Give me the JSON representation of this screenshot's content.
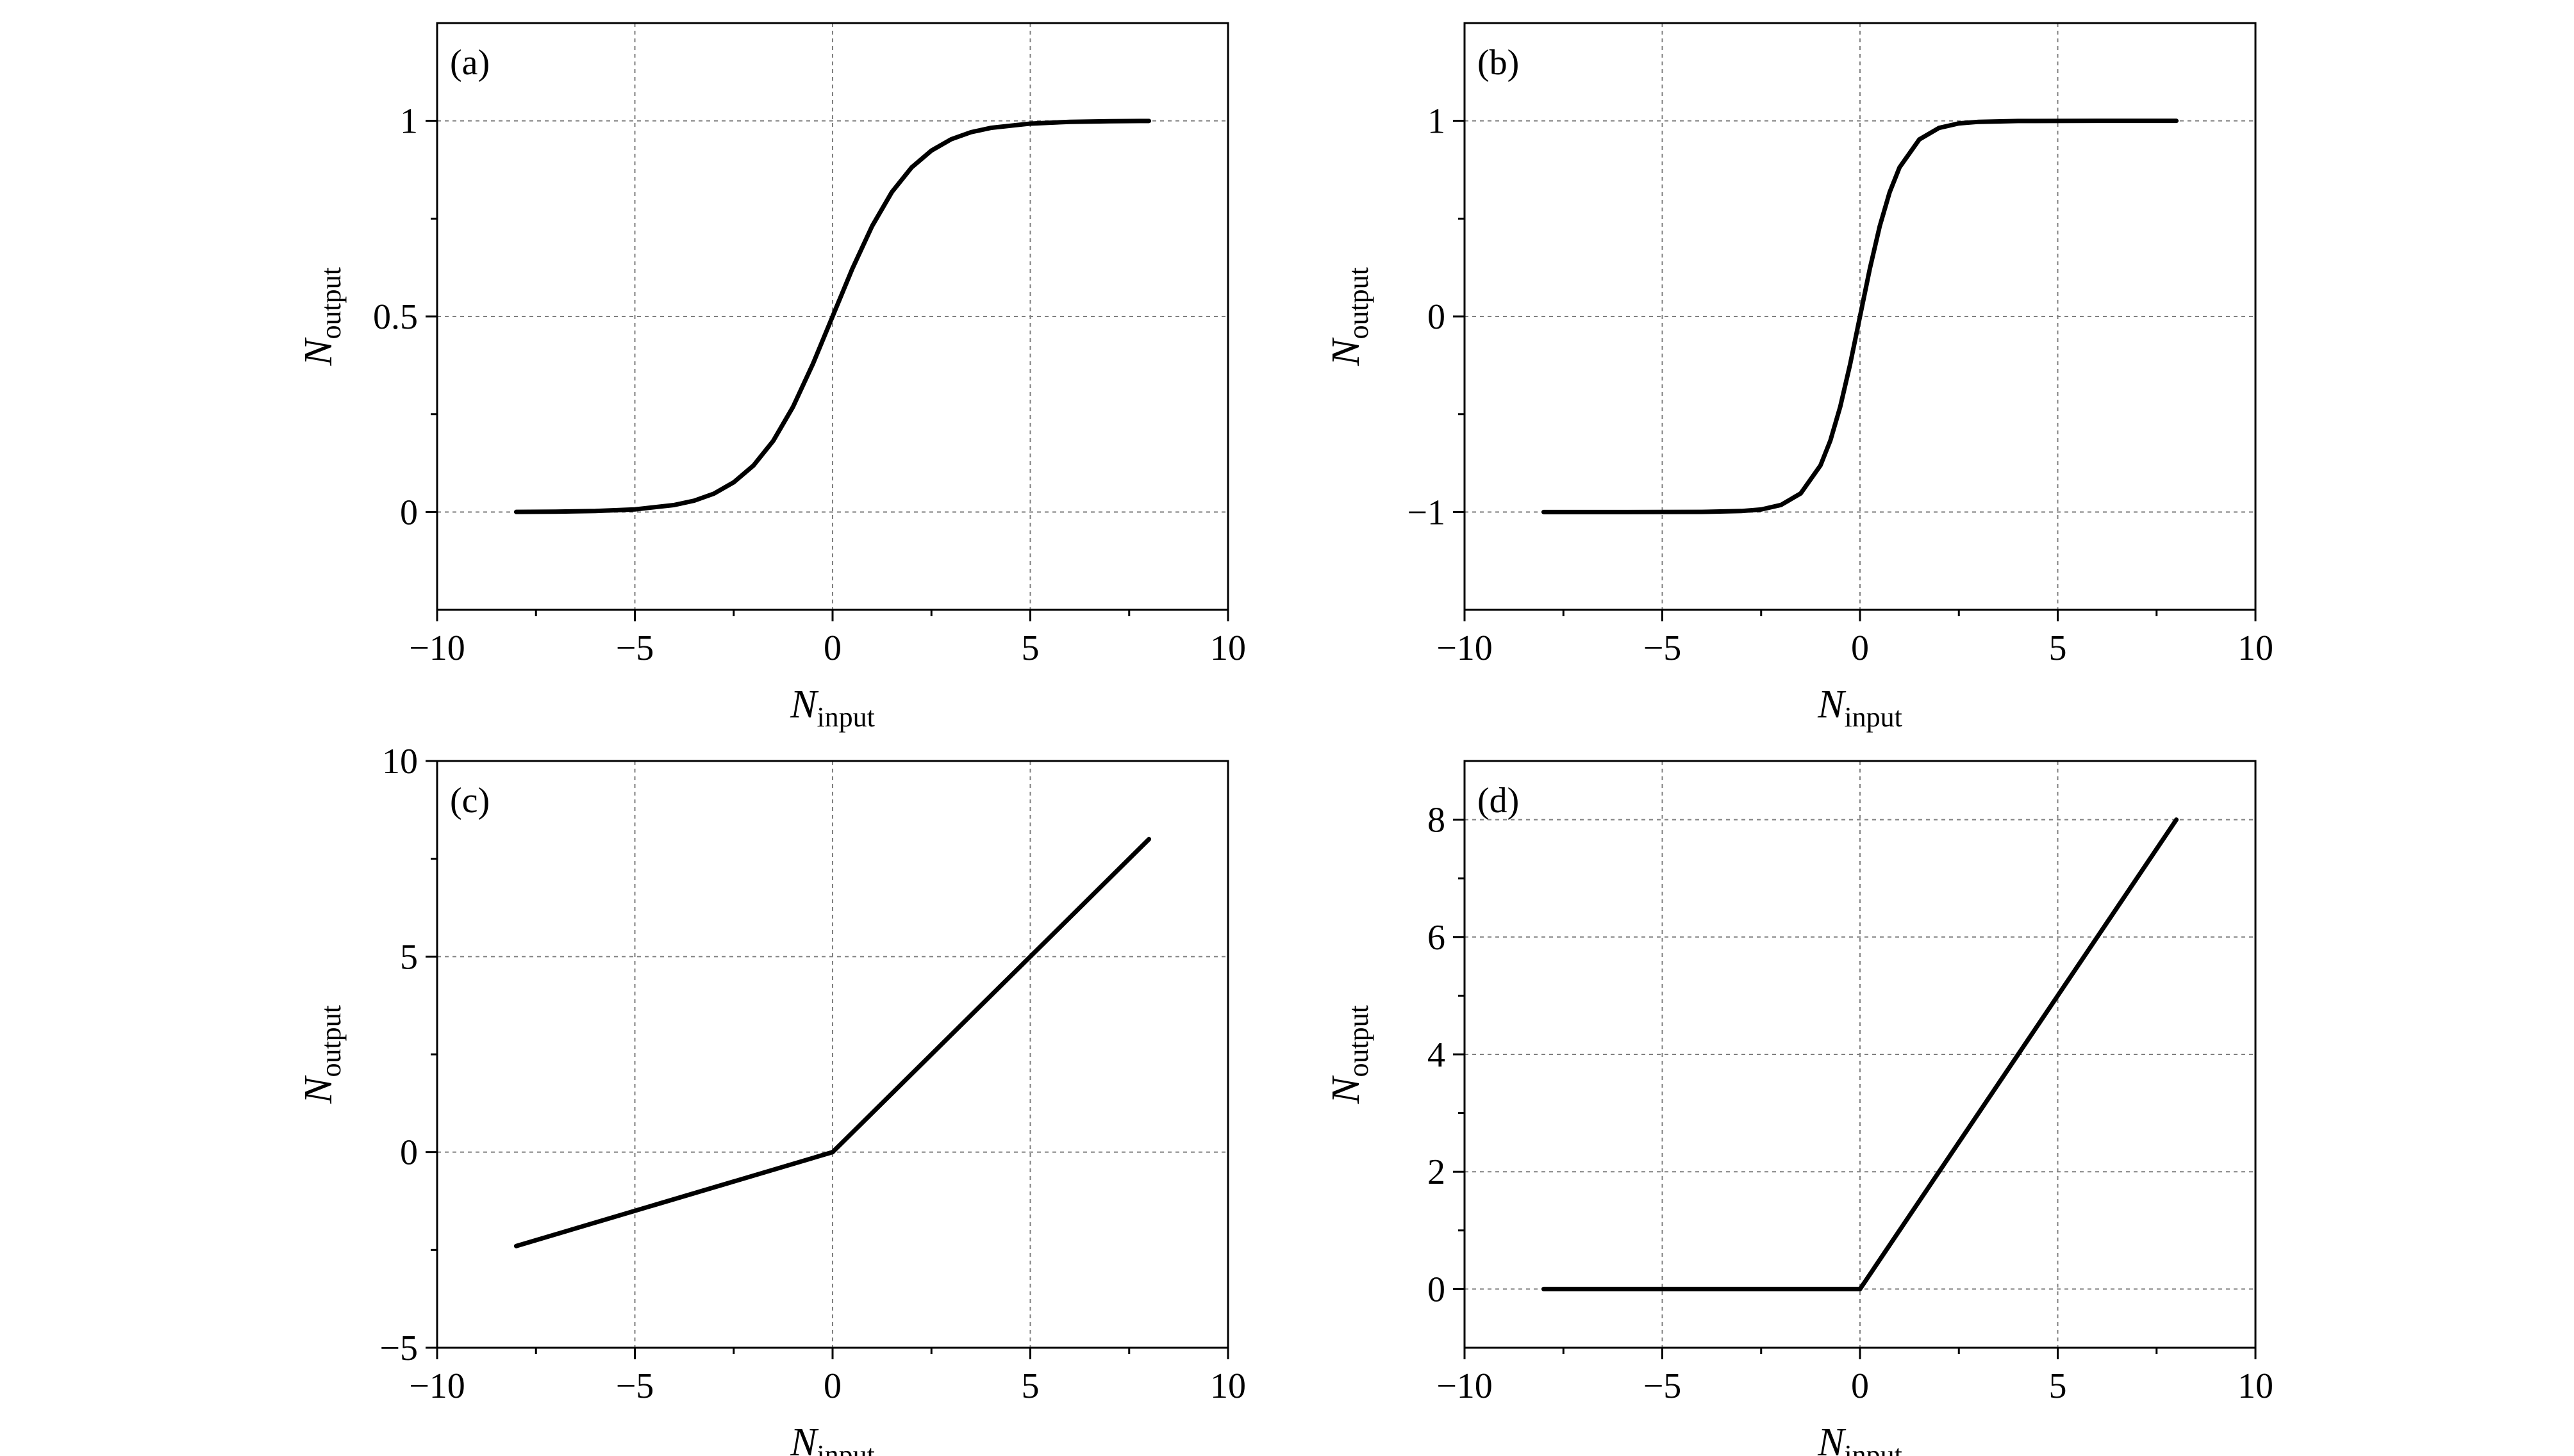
{
  "chart_data": [
    {
      "panel_label": "(a)",
      "type": "line",
      "xlabel": "N",
      "xlabel_sub": "input",
      "ylabel": "N",
      "ylabel_sub": "output",
      "xlim": [
        -10,
        10
      ],
      "ylim": [
        -0.25,
        1.25
      ],
      "xticks": [
        -10,
        -5,
        0,
        5,
        10
      ],
      "xtick_labels": [
        "−10",
        "−5",
        "0",
        "5",
        "10"
      ],
      "yticks": [
        0,
        0.5,
        1
      ],
      "ytick_labels": [
        "0",
        "0.5",
        "1"
      ],
      "grid": true,
      "series": [
        {
          "x": [
            -8,
            -7,
            -6,
            -5,
            -4,
            -3.5,
            -3,
            -2.5,
            -2,
            -1.5,
            -1,
            -0.5,
            0,
            0.5,
            1,
            1.5,
            2,
            2.5,
            3,
            3.5,
            4,
            5,
            6,
            7,
            8
          ],
          "y": [
            0.0003,
            0.0009,
            0.0025,
            0.0067,
            0.018,
            0.029,
            0.047,
            0.076,
            0.119,
            0.182,
            0.269,
            0.378,
            0.5,
            0.622,
            0.731,
            0.818,
            0.881,
            0.924,
            0.953,
            0.971,
            0.982,
            0.993,
            0.9975,
            0.9991,
            0.9997
          ]
        }
      ]
    },
    {
      "panel_label": "(b)",
      "type": "line",
      "xlabel": "N",
      "xlabel_sub": "input",
      "ylabel": "N",
      "ylabel_sub": "output",
      "xlim": [
        -10,
        10
      ],
      "ylim": [
        -1.5,
        1.5
      ],
      "xticks": [
        -10,
        -5,
        0,
        5,
        10
      ],
      "xtick_labels": [
        "−10",
        "−5",
        "0",
        "5",
        "10"
      ],
      "yticks": [
        -1,
        0,
        1
      ],
      "ytick_labels": [
        "−1",
        "0",
        "1"
      ],
      "grid": true,
      "series": [
        {
          "x": [
            -8,
            -6,
            -4,
            -3,
            -2.5,
            -2,
            -1.5,
            -1,
            -0.75,
            -0.5,
            -0.25,
            0,
            0.25,
            0.5,
            0.75,
            1,
            1.5,
            2,
            2.5,
            3,
            4,
            6,
            8
          ],
          "y": [
            -1,
            -1,
            -0.9993,
            -0.995,
            -0.987,
            -0.964,
            -0.905,
            -0.762,
            -0.635,
            -0.462,
            -0.245,
            0,
            0.245,
            0.462,
            0.635,
            0.762,
            0.905,
            0.964,
            0.987,
            0.995,
            0.9993,
            1,
            1
          ]
        }
      ]
    },
    {
      "panel_label": "(c)",
      "type": "line",
      "xlabel": "N",
      "xlabel_sub": "input",
      "ylabel": "N",
      "ylabel_sub": "output",
      "xlim": [
        -10,
        10
      ],
      "ylim": [
        -5,
        10
      ],
      "xticks": [
        -10,
        -5,
        0,
        5,
        10
      ],
      "xtick_labels": [
        "−10",
        "−5",
        "0",
        "5",
        "10"
      ],
      "yticks": [
        -5,
        0,
        5,
        10
      ],
      "ytick_labels": [
        "−5",
        "0",
        "5",
        "10"
      ],
      "grid": true,
      "series": [
        {
          "x": [
            -8,
            0,
            8
          ],
          "y": [
            -2.4,
            0,
            8
          ]
        }
      ]
    },
    {
      "panel_label": "(d)",
      "type": "line",
      "xlabel": "N",
      "xlabel_sub": "input",
      "ylabel": "N",
      "ylabel_sub": "output",
      "xlim": [
        -10,
        10
      ],
      "ylim": [
        -1,
        9
      ],
      "xticks": [
        -10,
        -5,
        0,
        5,
        10
      ],
      "xtick_labels": [
        "−10",
        "−5",
        "0",
        "5",
        "10"
      ],
      "yticks": [
        0,
        2,
        4,
        6,
        8
      ],
      "ytick_labels": [
        "0",
        "2",
        "4",
        "6",
        "8"
      ],
      "grid": true,
      "series": [
        {
          "x": [
            -8,
            0,
            8
          ],
          "y": [
            0,
            0,
            8
          ]
        }
      ]
    }
  ]
}
